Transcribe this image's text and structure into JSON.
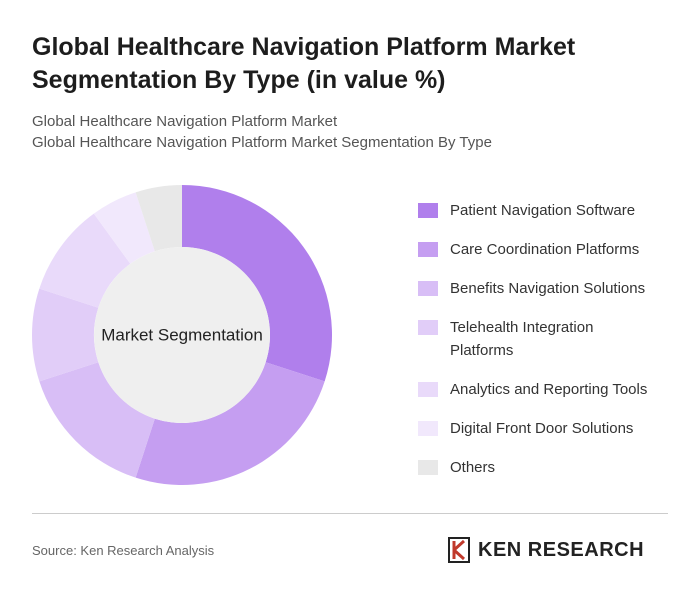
{
  "chart_data": {
    "type": "donut",
    "title": "Global Healthcare Navigation Platform Market Segmentation By Type (in value %)",
    "subtitles": [
      "Global Healthcare Navigation Platform Market",
      "Global Healthcare Navigation Platform Market Segmentation By Type"
    ],
    "center_label": "Market Segmentation",
    "categories": [
      "Patient Navigation Software",
      "Care Coordination Platforms",
      "Benefits Navigation Solutions",
      "Telehealth Integration Platforms",
      "Analytics and Reporting Tools",
      "Digital Front Door Solutions",
      "Others"
    ],
    "values": [
      30,
      25,
      15,
      10,
      10,
      5,
      5
    ],
    "colors": [
      "#b07fec",
      "#c59ef1",
      "#d8bef6",
      "#e1cdf8",
      "#e9dafa",
      "#f1e8fc",
      "#e8e8e8"
    ],
    "source": "Source: Ken Research Analysis",
    "brand": "KEN RESEARCH"
  }
}
